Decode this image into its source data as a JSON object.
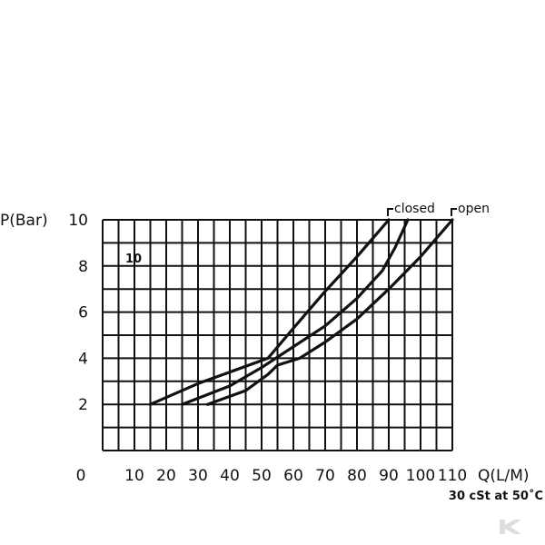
{
  "chart_data": {
    "type": "line",
    "ylabel": "P(Bar)",
    "xlabel": "Q(L/M)",
    "condition": "30 cSt at 50˚C",
    "size_label": "10",
    "origin_label": "0",
    "xlim": [
      0,
      110
    ],
    "ylim": [
      0,
      10
    ],
    "x_ticks": [
      "10",
      "20",
      "30",
      "40",
      "50",
      "60",
      "70",
      "80",
      "90",
      "100",
      "110"
    ],
    "y_ticks": [
      "2",
      "4",
      "6",
      "8",
      "10"
    ],
    "grid": true,
    "annotations": [
      {
        "label": "closed",
        "x": 90,
        "y": 10
      },
      {
        "label": "open",
        "x": 110,
        "y": 10
      }
    ],
    "series": [
      {
        "name": "",
        "x": [
          15,
          30,
          52,
          60,
          70,
          80,
          90
        ],
        "y": [
          2.0,
          2.9,
          4.0,
          5.3,
          6.9,
          8.4,
          10.0
        ]
      },
      {
        "name": "",
        "x": [
          25,
          40,
          50,
          60,
          70,
          80,
          88,
          92,
          96
        ],
        "y": [
          2.0,
          2.8,
          3.6,
          4.5,
          5.4,
          6.6,
          7.8,
          8.8,
          10.0
        ]
      },
      {
        "name": "",
        "x": [
          33,
          45,
          52,
          55,
          62,
          70,
          80,
          90,
          100,
          110
        ],
        "y": [
          2.0,
          2.6,
          3.3,
          3.7,
          4.0,
          4.7,
          5.7,
          7.0,
          8.4,
          10.0
        ]
      }
    ]
  }
}
